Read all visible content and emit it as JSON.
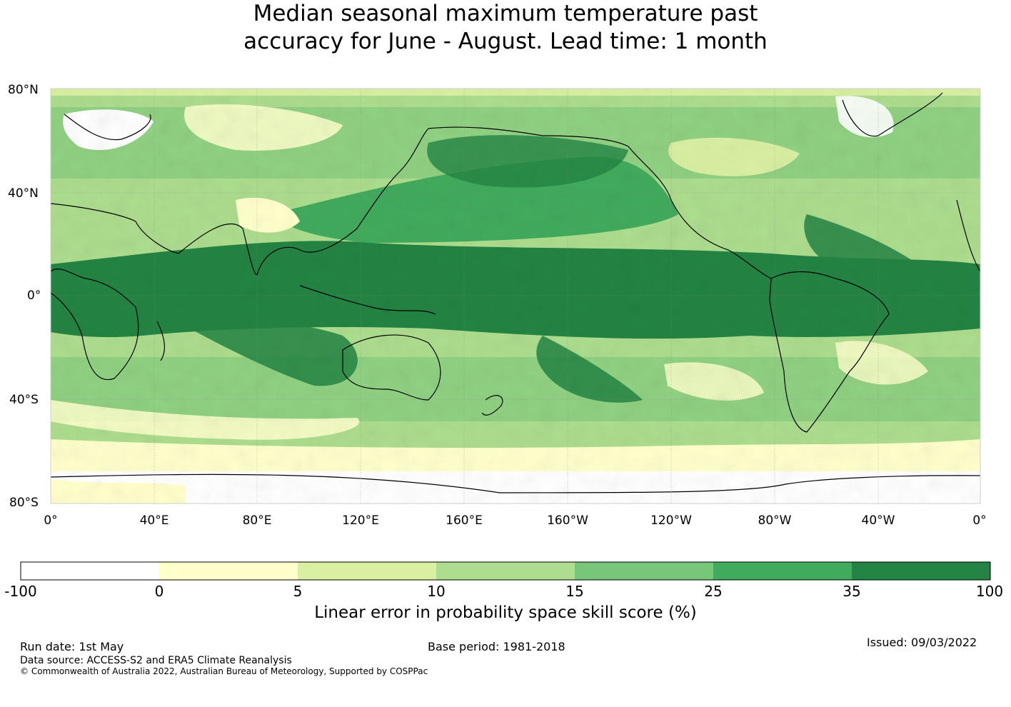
{
  "title": {
    "line1": "Median seasonal maximum temperature past",
    "line2": "accuracy for June - August. Lead time: 1 month"
  },
  "map": {
    "lat_labels": [
      "80°N",
      "40°N",
      "0°",
      "40°S",
      "80°S"
    ],
    "lon_labels": [
      "0°",
      "40°E",
      "80°E",
      "120°E",
      "160°E",
      "160°W",
      "120°W",
      "80°W",
      "40°W",
      "0°"
    ]
  },
  "colorbar": {
    "tick_labels": [
      "-100",
      "0",
      "5",
      "10",
      "15",
      "25",
      "35",
      "100"
    ],
    "colors": [
      "#ffffff",
      "#ffffcc",
      "#d9f0a3",
      "#addd8e",
      "#78c679",
      "#41ab5d",
      "#238443"
    ],
    "label": "Linear error in probability space skill score (%)"
  },
  "footer": {
    "run_date": "Run date: 1st May",
    "base_period": "Base period: 1981-2018",
    "issued": "Issued: 09/03/2022",
    "data_source": "Data source: ACCESS-S2 and ERA5 Climate Reanalysis",
    "copyright": "© Commonwealth of Australia 2022, Australian Bureau of Meteorology, Supported by COSPPac"
  }
}
